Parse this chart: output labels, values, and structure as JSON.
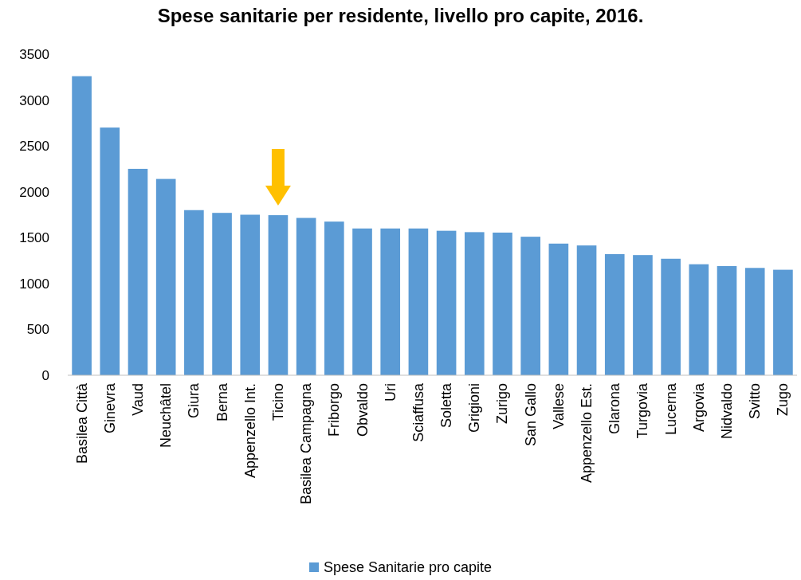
{
  "chart_data": {
    "type": "bar",
    "title": "Spese sanitarie per residente, livello pro capite, 2016.",
    "categories": [
      "Basilea Città",
      "Ginevra",
      "Vaud",
      "Neuchâtel",
      "Giura",
      "Berna",
      "Appenzello Int.",
      "Ticino",
      "Basilea Campagna",
      "Friborgo",
      "Obvaldo",
      "Uri",
      "Sciaffusa",
      "Soletta",
      "Grigioni",
      "Zurigo",
      "San Gallo",
      "Vallese",
      "Appenzello Est.",
      "Glarona",
      "Turgovia",
      "Lucerna",
      "Argovia",
      "Nidvaldo",
      "Svitto",
      "Zugo"
    ],
    "series": [
      {
        "name": "Spese Sanitarie pro capite",
        "color": "#5b9bd5",
        "values": [
          3260,
          2700,
          2250,
          2140,
          1800,
          1770,
          1750,
          1745,
          1715,
          1675,
          1600,
          1600,
          1600,
          1575,
          1560,
          1555,
          1510,
          1435,
          1415,
          1320,
          1310,
          1270,
          1210,
          1190,
          1170,
          1150
        ]
      }
    ],
    "ylim": [
      0,
      3500
    ],
    "yticks": [
      0,
      500,
      1000,
      1500,
      2000,
      2500,
      3000,
      3500
    ],
    "legend": "bottom"
  }
}
